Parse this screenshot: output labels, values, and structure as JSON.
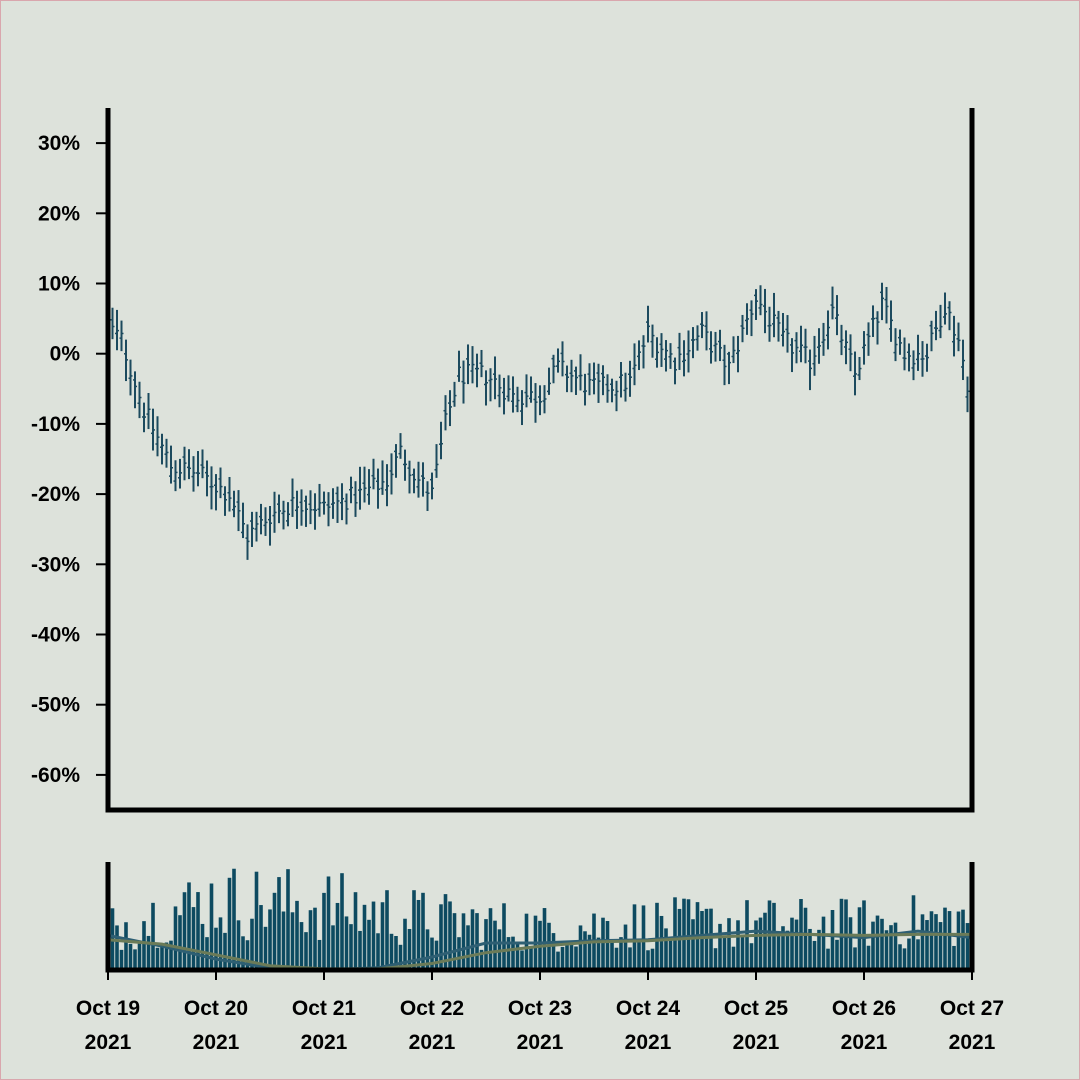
{
  "colors": {
    "background": "#dde2db",
    "ohlc": "#1c4a5e",
    "volume_bar": "#0d4a60",
    "ma_short": "#2e5f73",
    "ma_long": "#6b7b58",
    "axis": "#000000"
  },
  "chart_data": [
    {
      "type": "ohlc",
      "title": "",
      "xlabel": "",
      "ylabel": "",
      "ylim": [
        -65,
        35
      ],
      "y_ticks": [
        "30%",
        "20%",
        "10%",
        "0%",
        "-10%",
        "-20%",
        "-30%",
        "-40%",
        "-50%",
        "-60%"
      ],
      "y_tick_values": [
        30,
        20,
        10,
        0,
        -10,
        -20,
        -30,
        -40,
        -50,
        -60
      ],
      "x_range": [
        "2021-10-19",
        "2021-10-27"
      ],
      "x_ticks": [
        {
          "line1": "Oct 19",
          "line2": "2021"
        },
        {
          "line1": "Oct 20",
          "line2": "2021"
        },
        {
          "line1": "Oct 21",
          "line2": "2021"
        },
        {
          "line1": "Oct 22",
          "line2": "2021"
        },
        {
          "line1": "Oct 23",
          "line2": "2021"
        },
        {
          "line1": "Oct 24",
          "line2": "2021"
        },
        {
          "line1": "Oct 25",
          "line2": "2021"
        },
        {
          "line1": "Oct 26",
          "line2": "2021"
        },
        {
          "line1": "Oct 27",
          "line2": "2021"
        }
      ],
      "x_tick_dates": [
        "2021-10-19",
        "2021-10-20",
        "2021-10-21",
        "2021-10-22",
        "2021-10-23",
        "2021-10-24",
        "2021-10-25",
        "2021-10-26",
        "2021-10-27"
      ],
      "bar_interval_hours": 1,
      "close_path": [
        {
          "x": "2021-10-19T00:00",
          "y": 4
        },
        {
          "x": "2021-10-19T03:00",
          "y": 2
        },
        {
          "x": "2021-10-19T08:00",
          "y": -8
        },
        {
          "x": "2021-10-19T14:00",
          "y": -16
        },
        {
          "x": "2021-10-19T20:00",
          "y": -17
        },
        {
          "x": "2021-10-20T03:00",
          "y": -20
        },
        {
          "x": "2021-10-20T07:00",
          "y": -26
        },
        {
          "x": "2021-10-20T12:00",
          "y": -23
        },
        {
          "x": "2021-10-20T18:00",
          "y": -21
        },
        {
          "x": "2021-10-21T00:00",
          "y": -22
        },
        {
          "x": "2021-10-21T08:00",
          "y": -20
        },
        {
          "x": "2021-10-21T14:00",
          "y": -18
        },
        {
          "x": "2021-10-21T17:00",
          "y": -14
        },
        {
          "x": "2021-10-21T21:00",
          "y": -18
        },
        {
          "x": "2021-10-22T00:00",
          "y": -20
        },
        {
          "x": "2021-10-22T03:00",
          "y": -10
        },
        {
          "x": "2021-10-22T06:00",
          "y": -3
        },
        {
          "x": "2021-10-22T12:00",
          "y": -3
        },
        {
          "x": "2021-10-22T18:00",
          "y": -6
        },
        {
          "x": "2021-10-23T00:00",
          "y": -6
        },
        {
          "x": "2021-10-23T04:00",
          "y": -2
        },
        {
          "x": "2021-10-23T12:00",
          "y": -5
        },
        {
          "x": "2021-10-23T20:00",
          "y": -4
        },
        {
          "x": "2021-10-24T00:00",
          "y": 3
        },
        {
          "x": "2021-10-24T06:00",
          "y": -1
        },
        {
          "x": "2021-10-24T12:00",
          "y": 3
        },
        {
          "x": "2021-10-24T18:00",
          "y": -2
        },
        {
          "x": "2021-10-25T00:00",
          "y": 8
        },
        {
          "x": "2021-10-25T06:00",
          "y": 2
        },
        {
          "x": "2021-10-25T12:00",
          "y": -1
        },
        {
          "x": "2021-10-25T17:00",
          "y": 6
        },
        {
          "x": "2021-10-25T22:00",
          "y": -3
        },
        {
          "x": "2021-10-26T04:00",
          "y": 7
        },
        {
          "x": "2021-10-26T09:00",
          "y": 0
        },
        {
          "x": "2021-10-26T14:00",
          "y": 0
        },
        {
          "x": "2021-10-26T18:00",
          "y": 7
        },
        {
          "x": "2021-10-26T21:00",
          "y": 2
        },
        {
          "x": "2021-10-27T00:00",
          "y": -7
        }
      ],
      "bar_range_pct": 5,
      "grid": false
    },
    {
      "type": "bar",
      "title": "",
      "description": "volume",
      "y_ticks": [],
      "x_range": [
        "2021-10-19",
        "2021-10-27"
      ],
      "bar_interval_hours": 1,
      "volume_level_by_day": [
        {
          "x": "2021-10-19",
          "y": 0.45
        },
        {
          "x": "2021-10-20",
          "y": 0.75
        },
        {
          "x": "2021-10-21",
          "y": 0.7
        },
        {
          "x": "2021-10-22",
          "y": 0.55
        },
        {
          "x": "2021-10-23",
          "y": 0.45
        },
        {
          "x": "2021-10-24",
          "y": 0.5
        },
        {
          "x": "2021-10-25",
          "y": 0.5
        },
        {
          "x": "2021-10-26",
          "y": 0.5
        },
        {
          "x": "2021-10-27",
          "y": 0.55
        }
      ],
      "moving_averages": [
        {
          "points": [
            {
              "x": "2021-10-19",
              "y": 0.32
            },
            {
              "x": "2021-10-19T12:00",
              "y": 0.22
            },
            {
              "x": "2021-10-20",
              "y": 0.1
            },
            {
              "x": "2021-10-20T12:00",
              "y": 0.02
            },
            {
              "x": "2021-10-21",
              "y": 0.0
            },
            {
              "x": "2021-10-21T12:00",
              "y": 0.02
            },
            {
              "x": "2021-10-22",
              "y": 0.12
            },
            {
              "x": "2021-10-22T12:00",
              "y": 0.25
            },
            {
              "x": "2021-10-23",
              "y": 0.25
            },
            {
              "x": "2021-10-23T12:00",
              "y": 0.27
            },
            {
              "x": "2021-10-24",
              "y": 0.28
            },
            {
              "x": "2021-10-24T12:00",
              "y": 0.32
            },
            {
              "x": "2021-10-25",
              "y": 0.36
            },
            {
              "x": "2021-10-25T12:00",
              "y": 0.33
            },
            {
              "x": "2021-10-26",
              "y": 0.3
            },
            {
              "x": "2021-10-26T12:00",
              "y": 0.36
            },
            {
              "x": "2021-10-27",
              "y": 0.3
            }
          ]
        },
        {
          "points": [
            {
              "x": "2021-10-19",
              "y": 0.28
            },
            {
              "x": "2021-10-19T12:00",
              "y": 0.24
            },
            {
              "x": "2021-10-20",
              "y": 0.14
            },
            {
              "x": "2021-10-20T12:00",
              "y": 0.04
            },
            {
              "x": "2021-10-21",
              "y": 0.01
            },
            {
              "x": "2021-10-21T12:00",
              "y": 0.01
            },
            {
              "x": "2021-10-22",
              "y": 0.06
            },
            {
              "x": "2021-10-22T12:00",
              "y": 0.16
            },
            {
              "x": "2021-10-23",
              "y": 0.22
            },
            {
              "x": "2021-10-23T12:00",
              "y": 0.26
            },
            {
              "x": "2021-10-24",
              "y": 0.27
            },
            {
              "x": "2021-10-24T12:00",
              "y": 0.3
            },
            {
              "x": "2021-10-25",
              "y": 0.32
            },
            {
              "x": "2021-10-25T12:00",
              "y": 0.33
            },
            {
              "x": "2021-10-26",
              "y": 0.32
            },
            {
              "x": "2021-10-26T12:00",
              "y": 0.33
            },
            {
              "x": "2021-10-27",
              "y": 0.33
            }
          ]
        }
      ]
    }
  ]
}
